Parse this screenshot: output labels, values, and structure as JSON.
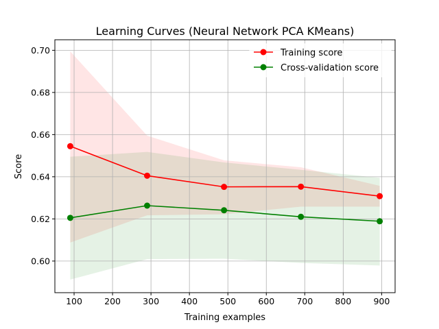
{
  "chart_data": {
    "type": "line",
    "title": "Learning Curves (Neural Network PCA KMeans)",
    "xlabel": "Training examples",
    "ylabel": "Score",
    "xlim": [
      50,
      935
    ],
    "ylim": [
      0.585,
      0.705
    ],
    "xticks": [
      100,
      200,
      300,
      400,
      500,
      600,
      700,
      800,
      900
    ],
    "yticks": [
      0.6,
      0.62,
      0.64,
      0.66,
      0.68,
      0.7
    ],
    "xtick_labels": [
      "100",
      "200",
      "300",
      "400",
      "500",
      "600",
      "700",
      "800",
      "900"
    ],
    "ytick_labels": [
      "0.60",
      "0.62",
      "0.64",
      "0.66",
      "0.68",
      "0.70"
    ],
    "grid": true,
    "legend": "upper-right",
    "x": [
      90,
      290,
      490,
      690,
      895
    ],
    "series": [
      {
        "name": "Training score",
        "color": "#ff0000",
        "band_color": "#ff0000",
        "values": [
          0.6545,
          0.6405,
          0.6352,
          0.6353,
          0.6308
        ],
        "band_upper": [
          0.6995,
          0.6595,
          0.6478,
          0.6445,
          0.6357
        ],
        "band_lower": [
          0.6088,
          0.6217,
          0.6222,
          0.6258,
          0.6258
        ]
      },
      {
        "name": "Cross-validation score",
        "color": "#008000",
        "band_color": "#008000",
        "values": [
          0.6205,
          0.6263,
          0.6241,
          0.621,
          0.6189
        ],
        "band_upper": [
          0.6495,
          0.6518,
          0.6468,
          0.6433,
          0.6395
        ],
        "band_lower": [
          0.5912,
          0.6009,
          0.6011,
          0.5991,
          0.5979
        ]
      }
    ]
  }
}
